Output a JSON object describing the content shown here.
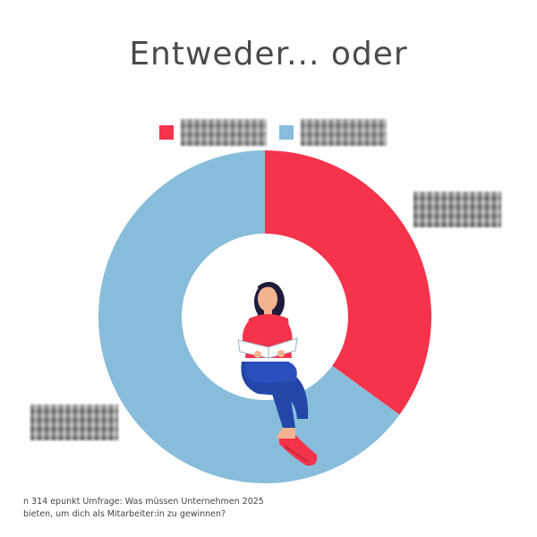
{
  "title": "Entweder... oder",
  "footnote": "n 314 epunkt Umfrage: Was müssen Unternehmen 2025 bieten, um dich als Mitarbeiter:in zu gewinnen?",
  "colors": {
    "series_a": "#f5334b",
    "series_b": "#87bdda"
  },
  "chart_data": {
    "type": "pie",
    "title": "Entweder... oder",
    "slices": [
      {
        "label": "",
        "value": 35,
        "color": "#f5334b"
      },
      {
        "label": "",
        "value": 65,
        "color": "#87bdda"
      }
    ],
    "legend_placement": "top",
    "center_image": "woman-reading-book-illustration"
  }
}
